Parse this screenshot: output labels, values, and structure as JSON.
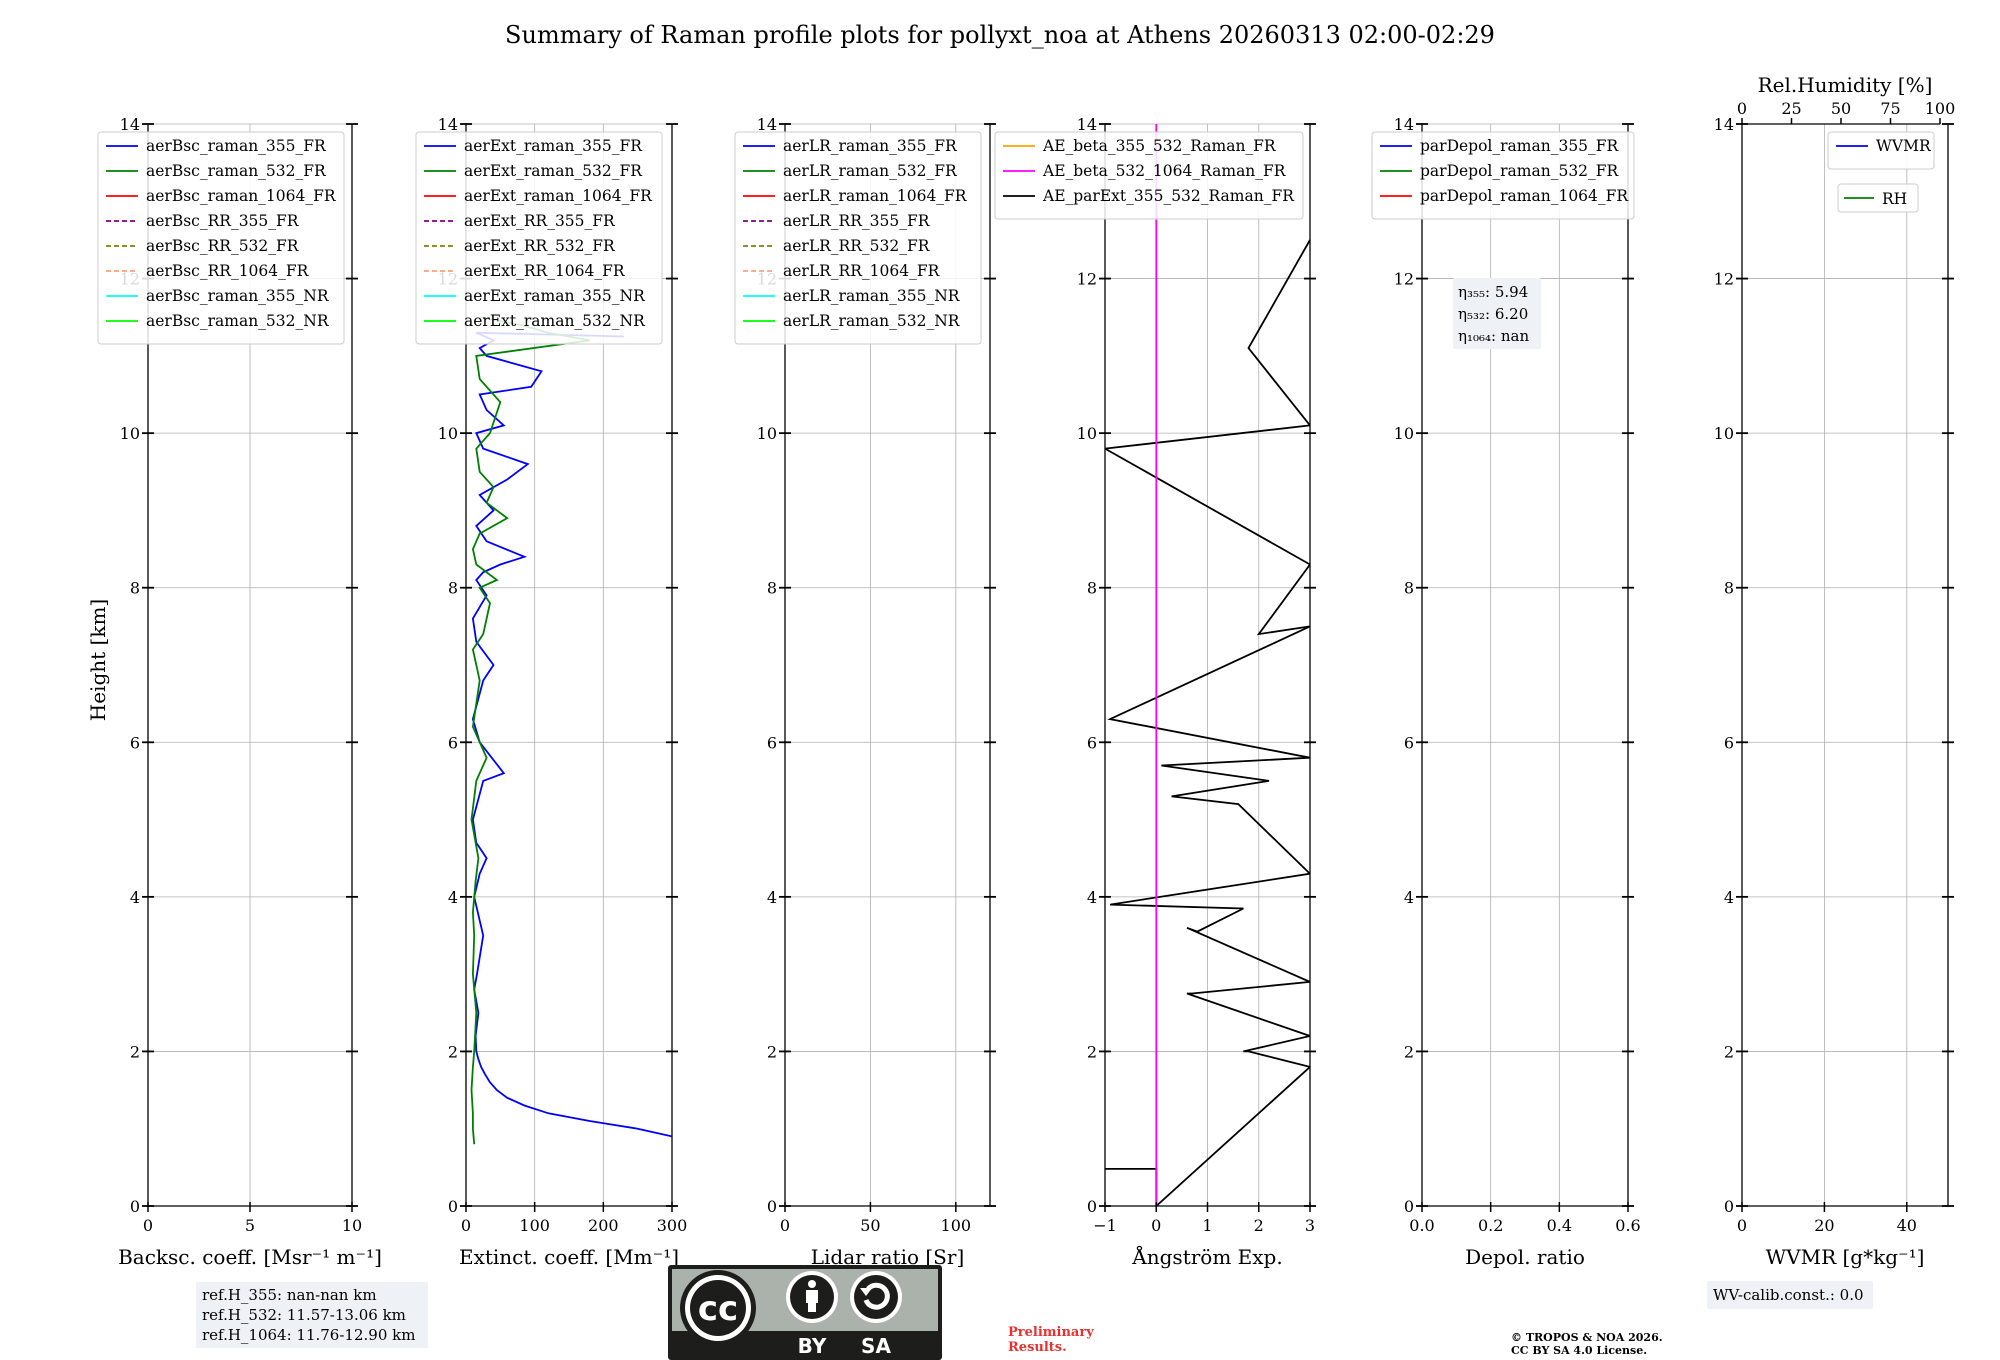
{
  "title": "Summary of Raman profile plots for pollyxt_noa at Athens 20260313 02:00-02:29",
  "ylabel": "Height [km]",
  "y_ticks": [
    "0",
    "2",
    "4",
    "6",
    "8",
    "10",
    "12",
    "14"
  ],
  "y_range": [
    0,
    14
  ],
  "panels": [
    {
      "id": "backscatter",
      "xlabel": "Backsc. coeff. [Msr⁻¹ m⁻¹]",
      "xlim": [
        0,
        10
      ],
      "x_ticks": [
        {
          "v": 0,
          "label": "0"
        },
        {
          "v": 5,
          "label": "5"
        },
        {
          "v": 10,
          "label": "10"
        }
      ],
      "legend": [
        "aerBsc_raman_355_FR",
        "aerBsc_raman_532_FR",
        "aerBsc_raman_1064_FR",
        "aerBsc_RR_355_FR",
        "aerBsc_RR_532_FR",
        "aerBsc_RR_1064_FR",
        "aerBsc_raman_355_NR",
        "aerBsc_raman_532_NR"
      ]
    },
    {
      "id": "extinction",
      "xlabel": "Extinct. coeff. [Mm⁻¹]",
      "xlim": [
        0,
        300
      ],
      "x_ticks": [
        {
          "v": 0,
          "label": "0"
        },
        {
          "v": 100,
          "label": "100"
        },
        {
          "v": 200,
          "label": "200"
        },
        {
          "v": 300,
          "label": "300"
        }
      ],
      "legend": [
        "aerExt_raman_355_FR",
        "aerExt_raman_532_FR",
        "aerExt_raman_1064_FR",
        "aerExt_RR_355_FR",
        "aerExt_RR_532_FR",
        "aerExt_RR_1064_FR",
        "aerExt_raman_355_NR",
        "aerExt_raman_532_NR"
      ]
    },
    {
      "id": "lidar-ratio",
      "xlabel": "Lidar ratio [Sr]",
      "xlim": [
        0,
        120
      ],
      "x_ticks": [
        {
          "v": 0,
          "label": "0"
        },
        {
          "v": 50,
          "label": "50"
        },
        {
          "v": 100,
          "label": "100"
        }
      ],
      "legend": [
        "aerLR_raman_355_FR",
        "aerLR_raman_532_FR",
        "aerLR_raman_1064_FR",
        "aerLR_RR_355_FR",
        "aerLR_RR_532_FR",
        "aerLR_RR_1064_FR",
        "aerLR_raman_355_NR",
        "aerLR_raman_532_NR"
      ]
    },
    {
      "id": "angstrom",
      "xlabel": "Ångström Exp.",
      "xlim": [
        -1,
        3
      ],
      "x_ticks": [
        {
          "v": -1,
          "label": "−1"
        },
        {
          "v": 0,
          "label": "0"
        },
        {
          "v": 1,
          "label": "1"
        },
        {
          "v": 2,
          "label": "2"
        },
        {
          "v": 3,
          "label": "3"
        }
      ],
      "legend": [
        "AE_beta_355_532_Raman_FR",
        "AE_beta_532_1064_Raman_FR",
        "AE_parExt_355_532_Raman_FR"
      ]
    },
    {
      "id": "depol",
      "xlabel": "Depol. ratio",
      "xlim": [
        0,
        0.6
      ],
      "x_ticks": [
        {
          "v": 0,
          "label": "0.0"
        },
        {
          "v": 0.2,
          "label": "0.2"
        },
        {
          "v": 0.4,
          "label": "0.4"
        },
        {
          "v": 0.6,
          "label": "0.6"
        }
      ],
      "legend": [
        "parDepol_raman_355_FR",
        "parDepol_raman_532_FR",
        "parDepol_raman_1064_FR"
      ]
    },
    {
      "id": "wvmr",
      "xlabel": "WVMR [g*kg⁻¹]",
      "xlim": [
        0,
        50
      ],
      "x_ticks": [
        {
          "v": 0,
          "label": "0"
        },
        {
          "v": 20,
          "label": "20"
        },
        {
          "v": 40,
          "label": "40"
        }
      ],
      "top_label": "Rel.Humidity [%]",
      "top_ticks": [
        "0",
        "25",
        "50",
        "75",
        "100"
      ],
      "legend": [
        "WVMR"
      ],
      "legend2": [
        "RH"
      ]
    }
  ],
  "eta_box": {
    "l1": "η₃₅₅: 5.94",
    "l2": "η₅₃₂: 6.20",
    "l3": "η₁₀₆₄: nan"
  },
  "ref_box": {
    "l1": "ref.H_355: nan-nan km",
    "l2": "ref.H_532: 11.57-13.06 km",
    "l3": "ref.H_1064: 11.76-12.90 km"
  },
  "wv_box": "WV-calib.const.: 0.0",
  "prelim": {
    "l1": "Preliminary",
    "l2": "Results."
  },
  "copyright": {
    "l1": "© TROPOS & NOA 2026.",
    "l2": "CC BY SA 4.0 License."
  },
  "cc_badge": {
    "by": "BY",
    "sa": "SA"
  },
  "colors": {
    "c355": "#0000ff",
    "c532": "#008000",
    "c1064": "#ff0000",
    "cRR355": "#800080",
    "cRR532": "#808000",
    "cRR1064": "#ffa07a",
    "cNR355": "#00ffff",
    "cNR532": "#00ff00",
    "ae1": "#ffa500",
    "ae2": "#ff00ff",
    "ae3": "#000000"
  },
  "chart_data": {
    "type": "line",
    "series": [
      {
        "name": "aerExt_raman_355_FR",
        "panel": "extinction",
        "x": [
          300,
          250,
          180,
          120,
          85,
          60,
          45,
          35,
          28,
          22,
          18,
          15,
          14,
          18,
          12,
          16,
          25,
          12,
          20,
          30,
          15,
          10,
          25,
          55,
          20,
          10,
          25,
          40,
          15,
          10,
          30,
          15,
          25,
          50,
          85,
          30,
          15,
          40,
          20,
          60,
          90,
          25,
          15,
          55,
          30,
          20,
          95,
          110,
          30,
          20,
          40,
          15,
          230
        ],
        "y": [
          0.9,
          1.0,
          1.1,
          1.2,
          1.3,
          1.4,
          1.5,
          1.6,
          1.7,
          1.8,
          1.9,
          2.0,
          2.2,
          2.5,
          2.8,
          3.0,
          3.5,
          4.0,
          4.3,
          4.5,
          4.7,
          5.0,
          5.5,
          5.6,
          6.0,
          6.3,
          6.8,
          7.0,
          7.3,
          7.6,
          7.9,
          8.1,
          8.2,
          8.3,
          8.4,
          8.6,
          8.8,
          9.0,
          9.2,
          9.4,
          9.6,
          9.8,
          10.0,
          10.1,
          10.3,
          10.5,
          10.6,
          10.8,
          11.0,
          11.1,
          11.2,
          11.3,
          11.25
        ]
      },
      {
        "name": "aerExt_raman_532_FR",
        "panel": "extinction",
        "x": [
          12,
          10,
          10,
          8,
          10,
          12,
          15,
          10,
          12,
          10,
          14,
          18,
          8,
          15,
          30,
          10,
          20,
          15,
          10,
          25,
          35,
          20,
          45,
          15,
          10,
          20,
          60,
          30,
          40,
          20,
          15,
          35,
          50,
          20,
          15,
          180,
          120,
          80,
          20
        ],
        "y": [
          0.8,
          1.0,
          1.2,
          1.5,
          1.8,
          2.0,
          2.5,
          3.0,
          3.5,
          3.8,
          4.2,
          4.5,
          5.0,
          5.5,
          5.8,
          6.2,
          6.8,
          7.0,
          7.2,
          7.4,
          7.8,
          8.0,
          8.1,
          8.3,
          8.5,
          8.7,
          8.9,
          9.1,
          9.3,
          9.5,
          9.8,
          10.0,
          10.4,
          10.7,
          11.0,
          11.2,
          11.3,
          11.4,
          11.5
        ]
      },
      {
        "name": "AE_parExt_355_532_Raman_FR",
        "panel": "angstrom",
        "x": [
          -1,
          0,
          0,
          3,
          1.8,
          1.7,
          3,
          0.6,
          0.7,
          3,
          0.6,
          0.8,
          1.7,
          -0.9,
          3,
          1.6,
          0.3,
          2.2,
          0.1,
          3,
          -0.9,
          3,
          2.0,
          3,
          -1,
          3,
          1.8,
          3
        ],
        "y": [
          0.48,
          0.48,
          0.0,
          1.8,
          2.0,
          2.0,
          2.2,
          2.75,
          2.75,
          2.9,
          3.6,
          3.55,
          3.85,
          3.9,
          4.3,
          5.2,
          5.3,
          5.5,
          5.7,
          5.8,
          6.3,
          7.5,
          7.4,
          8.3,
          9.8,
          10.1,
          11.1,
          12.5
        ]
      },
      {
        "name": "AE_beta_532_1064_Raman_FR",
        "panel": "angstrom",
        "x": [
          0,
          0
        ],
        "y": [
          0,
          14
        ]
      }
    ]
  }
}
